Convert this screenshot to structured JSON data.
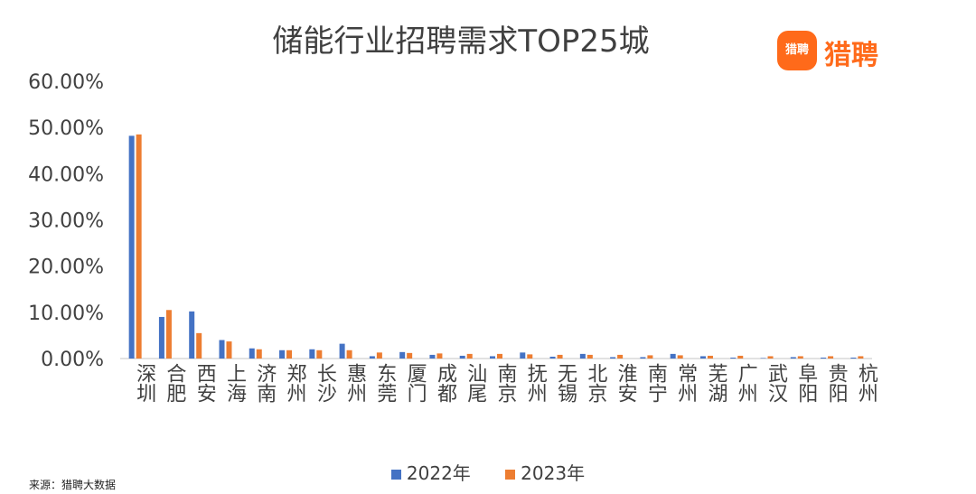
{
  "chart_data": {
    "type": "bar",
    "title": "储能行业招聘需求TOP25城",
    "categories": [
      "深圳",
      "合肥",
      "西安",
      "上海",
      "济南",
      "郑州",
      "长沙",
      "惠州",
      "东莞",
      "厦门",
      "成都",
      "汕尾",
      "南京",
      "抚州",
      "无锡",
      "北京",
      "淮安",
      "南宁",
      "常州",
      "芜湖",
      "广州",
      "武汉",
      "阜阳",
      "贵阳",
      "杭州"
    ],
    "series": [
      {
        "name": "2022年",
        "color": "#4472c4",
        "values": [
          48.2,
          9.0,
          10.2,
          4.0,
          2.2,
          1.8,
          2.0,
          3.2,
          0.5,
          1.4,
          0.8,
          0.6,
          0.5,
          1.3,
          0.4,
          1.0,
          0.3,
          0.3,
          1.0,
          0.5,
          0.2,
          0.1,
          0.3,
          0.2,
          0.2
        ]
      },
      {
        "name": "2023年",
        "color": "#ed7d31",
        "values": [
          48.5,
          10.5,
          5.5,
          3.7,
          2.0,
          1.8,
          1.8,
          1.8,
          1.3,
          1.2,
          1.1,
          1.0,
          1.0,
          0.9,
          0.8,
          0.8,
          0.8,
          0.7,
          0.7,
          0.6,
          0.6,
          0.5,
          0.5,
          0.5,
          0.5
        ]
      }
    ],
    "y_ticks": [
      "0.00%",
      "10.00%",
      "20.00%",
      "30.00%",
      "40.00%",
      "50.00%",
      "60.00%"
    ],
    "ylim": [
      0,
      60
    ],
    "grid": false,
    "legend": "bottom"
  },
  "logo": {
    "badge": "猎聘",
    "text": "猎聘"
  },
  "source": "来源：猎聘大数据"
}
